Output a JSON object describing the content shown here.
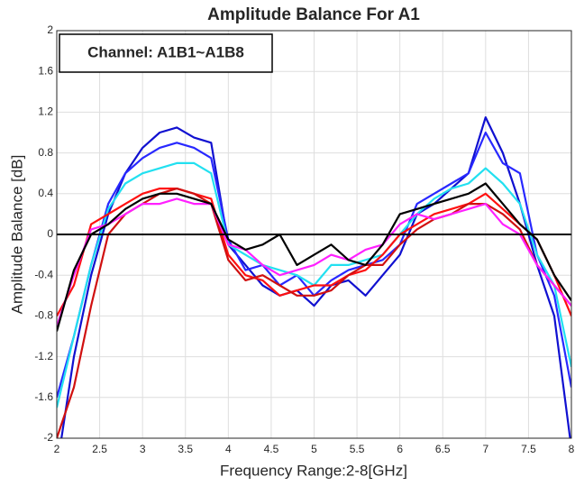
{
  "chart_data": {
    "type": "line",
    "title": "Amplitude Balance For A1",
    "x_label": "Frequency Range:2-8[GHz]",
    "y_label": "Amplitude Balance [dB]",
    "annotation": "Channel: A1B1~A1B8",
    "x": [
      2.0,
      2.2,
      2.4,
      2.6,
      2.8,
      3.0,
      3.2,
      3.4,
      3.6,
      3.8,
      4.0,
      4.2,
      4.4,
      4.6,
      4.8,
      5.0,
      5.2,
      5.4,
      5.6,
      5.8,
      6.0,
      6.2,
      6.4,
      6.6,
      6.8,
      7.0,
      7.2,
      7.4,
      7.6,
      7.8,
      8.0
    ],
    "series": [
      {
        "color": "#1010d0",
        "values": [
          -2.3,
          -1.2,
          -0.4,
          0.2,
          0.6,
          0.85,
          1.0,
          1.05,
          0.95,
          0.9,
          -0.1,
          -0.3,
          -0.5,
          -0.6,
          -0.55,
          -0.7,
          -0.5,
          -0.45,
          -0.6,
          -0.4,
          -0.2,
          0.2,
          0.3,
          0.45,
          0.6,
          1.15,
          0.8,
          0.3,
          -0.3,
          -0.8,
          -2.1
        ]
      },
      {
        "color": "#2828ff",
        "values": [
          -1.6,
          -1.0,
          -0.3,
          0.3,
          0.6,
          0.75,
          0.85,
          0.9,
          0.85,
          0.75,
          -0.05,
          -0.35,
          -0.3,
          -0.5,
          -0.4,
          -0.6,
          -0.45,
          -0.35,
          -0.3,
          -0.25,
          -0.1,
          0.3,
          0.4,
          0.5,
          0.6,
          1.0,
          0.7,
          0.6,
          -0.2,
          -0.6,
          -1.5
        ]
      },
      {
        "color": "#22e0f0",
        "values": [
          -1.7,
          -1.0,
          -0.3,
          0.25,
          0.5,
          0.6,
          0.65,
          0.7,
          0.7,
          0.6,
          -0.1,
          -0.2,
          -0.3,
          -0.35,
          -0.4,
          -0.5,
          -0.3,
          -0.3,
          -0.25,
          -0.2,
          0.0,
          0.2,
          0.35,
          0.45,
          0.5,
          0.65,
          0.5,
          0.3,
          -0.2,
          -0.5,
          -1.3
        ]
      },
      {
        "color": "#ff1010",
        "values": [
          -0.8,
          -0.5,
          0.1,
          0.2,
          0.3,
          0.4,
          0.45,
          0.45,
          0.4,
          0.35,
          -0.2,
          -0.4,
          -0.45,
          -0.6,
          -0.55,
          -0.5,
          -0.5,
          -0.4,
          -0.35,
          -0.2,
          0.0,
          0.1,
          0.2,
          0.25,
          0.3,
          0.4,
          0.25,
          0.1,
          -0.05,
          -0.4,
          -0.8
        ]
      },
      {
        "color": "#d01010",
        "values": [
          -2.0,
          -1.5,
          -0.7,
          0.0,
          0.2,
          0.3,
          0.4,
          0.45,
          0.4,
          0.3,
          -0.25,
          -0.45,
          -0.4,
          -0.5,
          -0.6,
          -0.6,
          -0.55,
          -0.4,
          -0.3,
          -0.3,
          -0.1,
          0.05,
          0.15,
          0.2,
          0.3,
          0.3,
          0.2,
          0.05,
          -0.3,
          -0.5,
          -0.7
        ]
      },
      {
        "color": "#ff20ff",
        "values": [
          -0.9,
          -0.4,
          0.05,
          0.1,
          0.2,
          0.3,
          0.3,
          0.35,
          0.3,
          0.3,
          -0.1,
          -0.15,
          -0.3,
          -0.4,
          -0.35,
          -0.3,
          -0.2,
          -0.25,
          -0.15,
          -0.1,
          0.1,
          0.2,
          0.15,
          0.2,
          0.25,
          0.3,
          0.1,
          0.0,
          -0.3,
          -0.5,
          -0.7
        ]
      },
      {
        "color": "#000000",
        "values": [
          -0.95,
          -0.35,
          0.0,
          0.1,
          0.25,
          0.35,
          0.4,
          0.4,
          0.35,
          0.3,
          -0.05,
          -0.15,
          -0.1,
          0.0,
          -0.3,
          -0.2,
          -0.1,
          -0.25,
          -0.3,
          -0.1,
          0.2,
          0.25,
          0.3,
          0.35,
          0.4,
          0.5,
          0.3,
          0.1,
          -0.05,
          -0.4,
          -0.65
        ]
      }
    ],
    "xlim": [
      2,
      8
    ],
    "xticks": [
      2,
      2.5,
      3,
      3.5,
      4,
      4.5,
      5,
      5.5,
      6,
      6.5,
      7,
      7.5,
      8
    ],
    "ylim": [
      -2,
      2
    ],
    "yticks": [
      -2,
      -1.6,
      -1.2,
      -0.8,
      -0.4,
      0,
      0.4,
      0.8,
      1.2,
      1.6,
      2
    ],
    "zero_line": 0,
    "grid": true
  }
}
